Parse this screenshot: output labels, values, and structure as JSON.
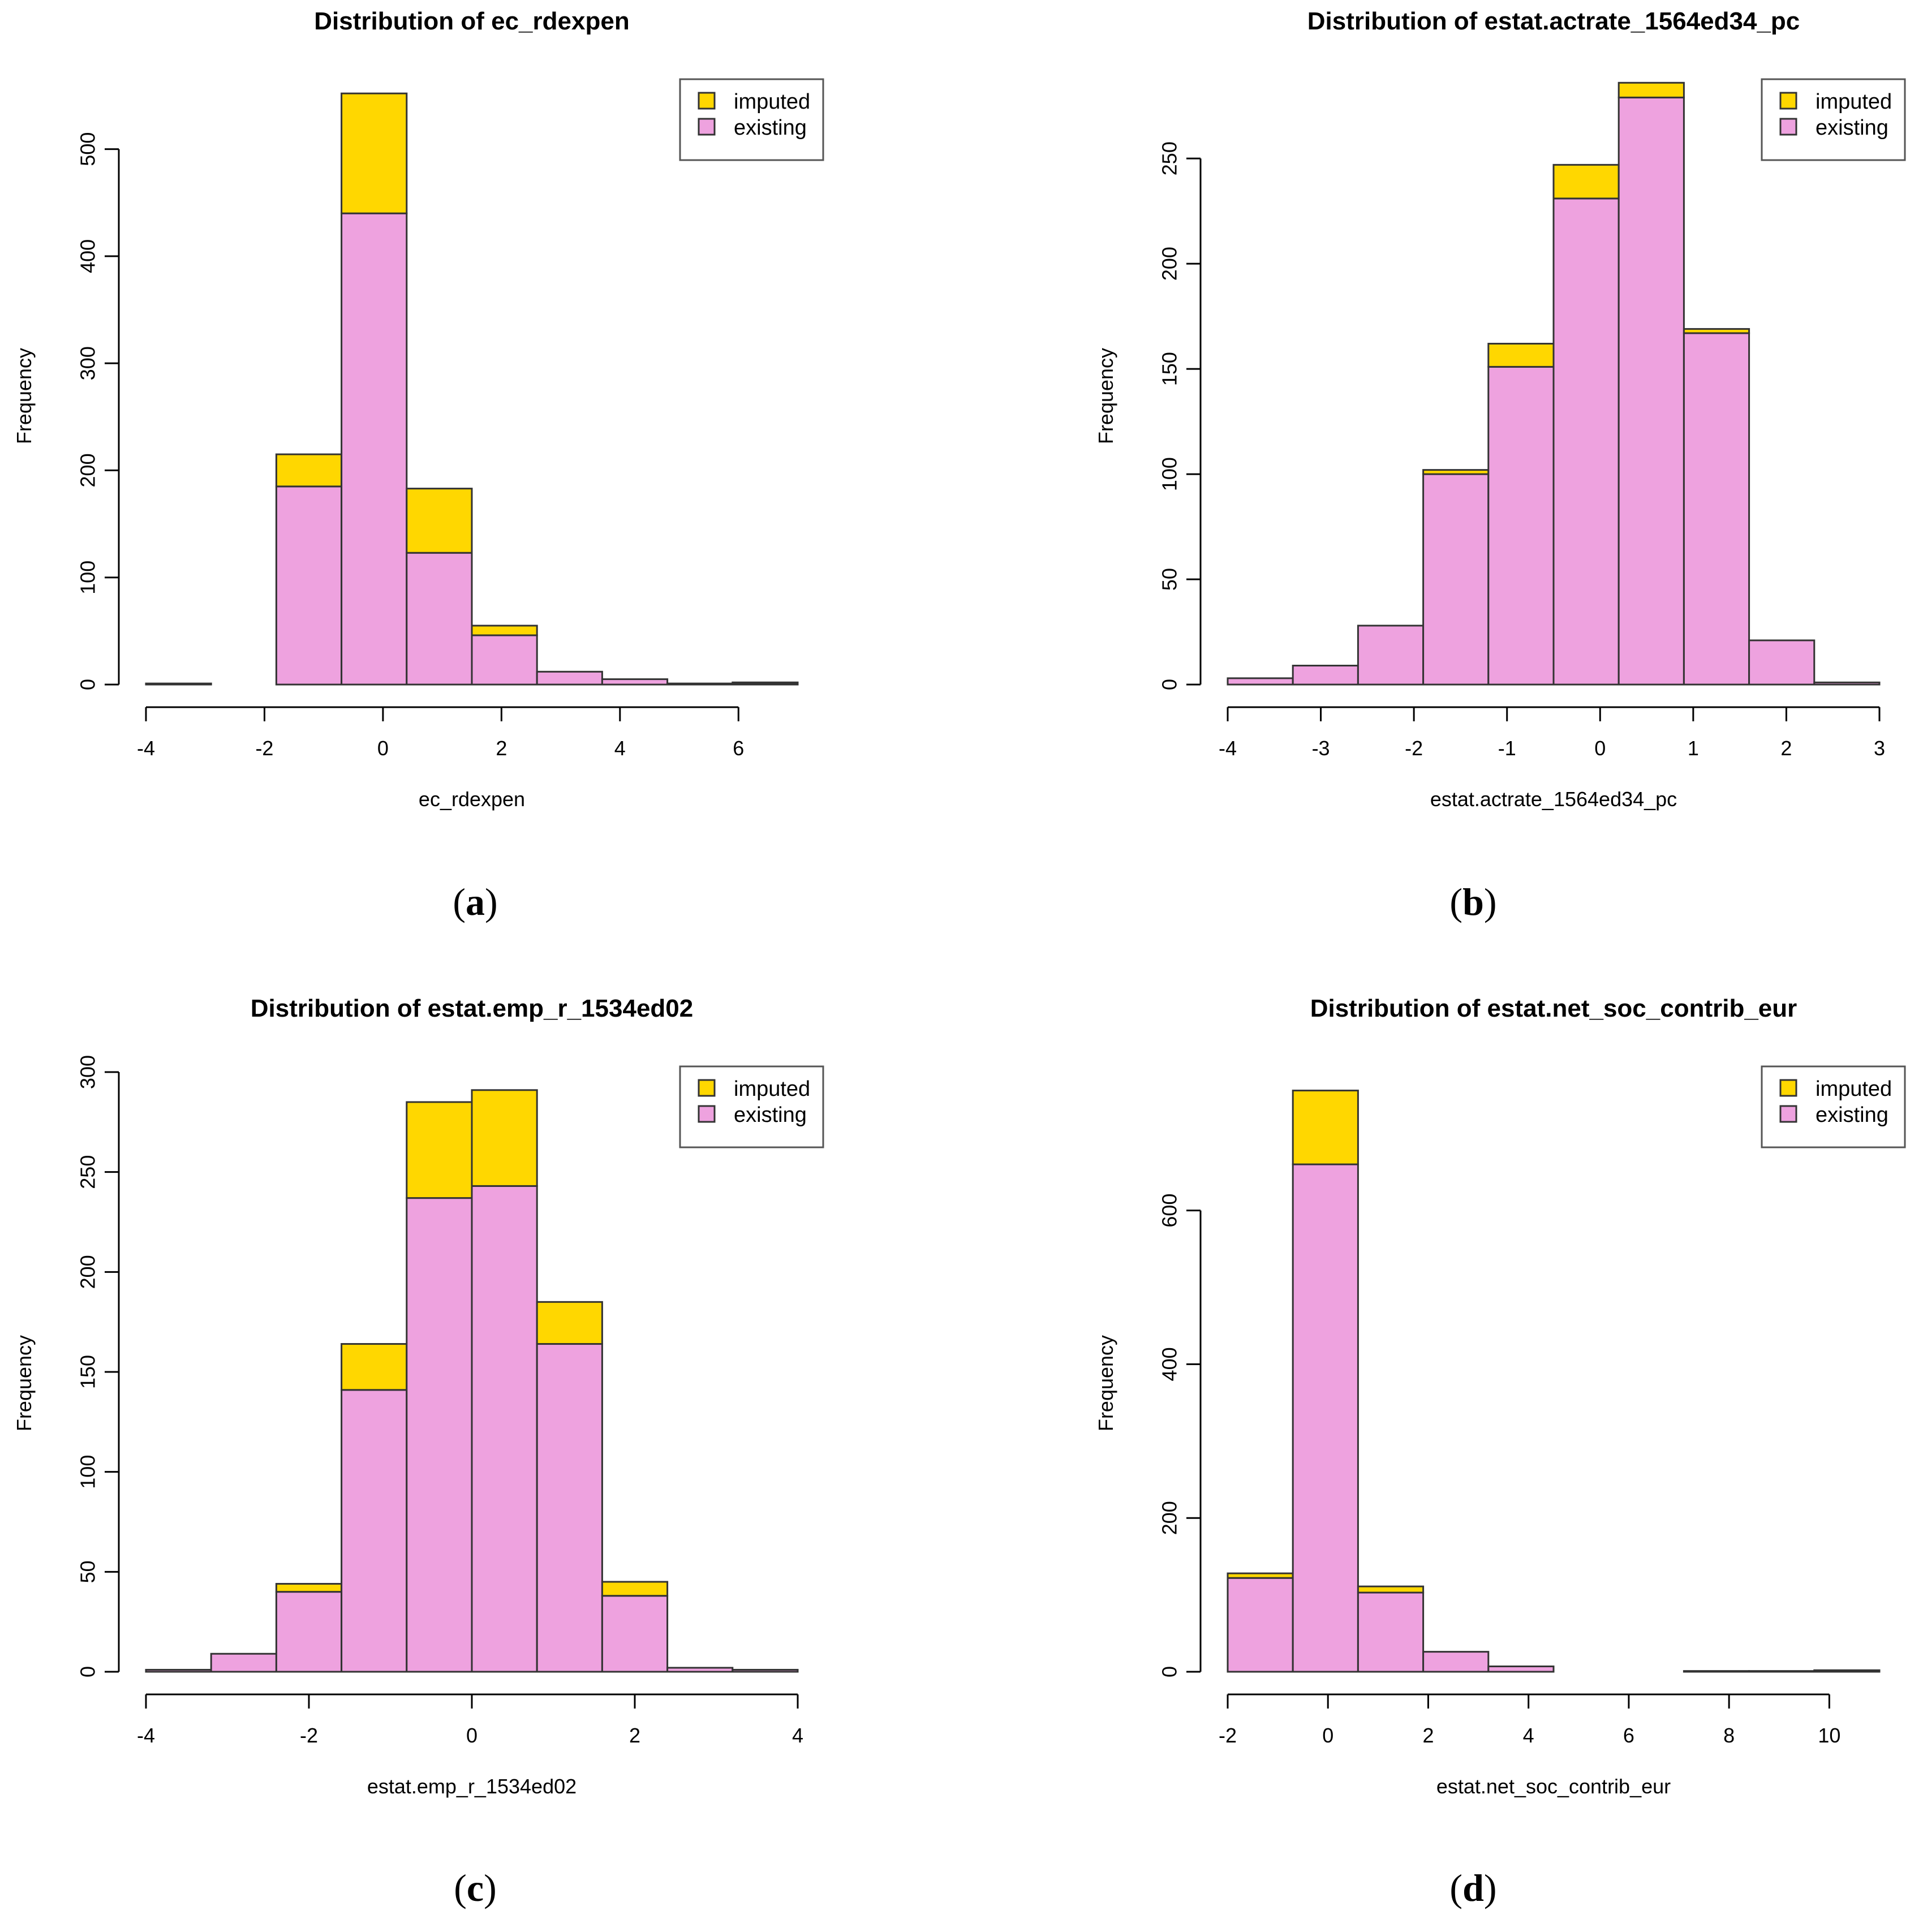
{
  "colors": {
    "imputed": "#FFD700",
    "existing": "#EEA2DF",
    "outline": "#333333"
  },
  "chart_data": [
    {
      "type": "bar",
      "subtype": "stacked-histogram",
      "panel": "a",
      "title": "Distribution of ec_rdexpen",
      "xlabel": "ec_rdexpen",
      "ylabel": "Frequency",
      "xlim": [
        -4,
        7
      ],
      "ylim": [
        0,
        560
      ],
      "xticks": [
        -4,
        -2,
        0,
        2,
        4,
        6
      ],
      "yticks": [
        0,
        100,
        200,
        300,
        400,
        500
      ],
      "bin_edges": [
        -4,
        -2.9,
        -1.8,
        -0.7,
        0.4,
        1.5,
        2.6,
        3.7,
        4.8,
        5.9,
        7.0
      ],
      "series": [
        {
          "name": "existing",
          "values": [
            1,
            0,
            185,
            440,
            123,
            46,
            12,
            5,
            1,
            1
          ]
        },
        {
          "name": "imputed",
          "values": [
            0,
            0,
            30,
            112,
            60,
            9,
            0,
            0,
            0,
            1
          ]
        }
      ],
      "legend": {
        "position": "top-right",
        "entries": [
          "imputed",
          "existing"
        ]
      },
      "caption_label": "a"
    },
    {
      "type": "bar",
      "subtype": "stacked-histogram",
      "panel": "b",
      "title": "Distribution of estat.actrate_1564ed34_pc",
      "xlabel": "estat.actrate_1564ed34_pc",
      "ylabel": "Frequency",
      "xlim": [
        -4,
        3
      ],
      "ylim": [
        0,
        285
      ],
      "xticks": [
        -4,
        -3,
        -2,
        -1,
        0,
        1,
        2,
        3
      ],
      "yticks": [
        0,
        50,
        100,
        150,
        200,
        250
      ],
      "bin_edges": [
        -4,
        -3.3,
        -2.6,
        -1.9,
        -1.2,
        -0.5,
        0.2,
        0.9,
        1.6,
        2.3,
        3.0
      ],
      "series": [
        {
          "name": "existing",
          "values": [
            3,
            9,
            28,
            100,
            151,
            231,
            279,
            167,
            21,
            1
          ]
        },
        {
          "name": "imputed",
          "values": [
            0,
            0,
            0,
            2,
            11,
            16,
            7,
            2,
            0,
            0
          ]
        }
      ],
      "legend": {
        "position": "top-right",
        "entries": [
          "imputed",
          "existing"
        ]
      },
      "caption_label": "b"
    },
    {
      "type": "bar",
      "subtype": "stacked-histogram",
      "panel": "c",
      "title": "Distribution of estat.emp_r_1534ed02",
      "xlabel": "estat.emp_r_1534ed02",
      "ylabel": "Frequency",
      "xlim": [
        -4,
        4
      ],
      "ylim": [
        0,
        300
      ],
      "xticks": [
        -4,
        -2,
        0,
        2,
        4
      ],
      "yticks": [
        0,
        50,
        100,
        150,
        200,
        250,
        300
      ],
      "bin_edges": [
        -4,
        -3.2,
        -2.4,
        -1.6,
        -0.8,
        0,
        0.8,
        1.6,
        2.4,
        3.2,
        4.0
      ],
      "series": [
        {
          "name": "existing",
          "values": [
            1,
            9,
            40,
            141,
            237,
            243,
            164,
            38,
            2,
            1
          ]
        },
        {
          "name": "imputed",
          "values": [
            0,
            0,
            4,
            23,
            48,
            48,
            21,
            7,
            0,
            0
          ]
        }
      ],
      "legend": {
        "position": "top-right",
        "entries": [
          "imputed",
          "existing"
        ]
      },
      "caption_label": "c"
    },
    {
      "type": "bar",
      "subtype": "stacked-histogram",
      "panel": "d",
      "title": "Distribution of estat.net_soc_contrib_eur",
      "xlabel": "estat.net_soc_contrib_eur",
      "ylabel": "Frequency",
      "xlim": [
        -2,
        11
      ],
      "ylim": [
        0,
        780
      ],
      "xticks": [
        -2,
        0,
        2,
        4,
        6,
        8,
        10
      ],
      "yticks": [
        0,
        200,
        400,
        600
      ],
      "bin_edges": [
        -2,
        -0.7,
        0.6,
        1.9,
        3.2,
        4.5,
        5.8,
        7.1,
        8.4,
        9.7,
        11.0
      ],
      "series": [
        {
          "name": "existing",
          "values": [
            122,
            660,
            103,
            26,
            7,
            0,
            0,
            1,
            1,
            2
          ]
        },
        {
          "name": "imputed",
          "values": [
            6,
            96,
            8,
            0,
            0,
            0,
            0,
            0,
            0,
            0
          ]
        }
      ],
      "legend": {
        "position": "top-right",
        "entries": [
          "imputed",
          "existing"
        ]
      },
      "caption_label": "d"
    }
  ]
}
